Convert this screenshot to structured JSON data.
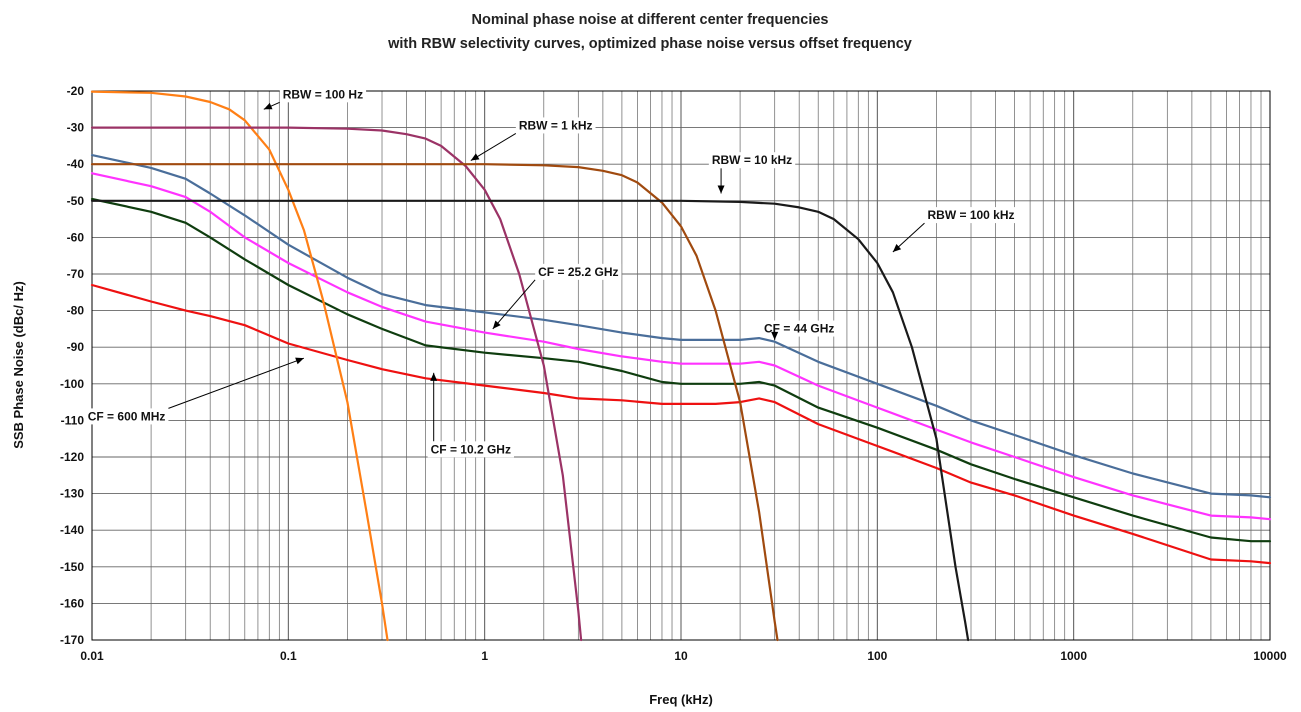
{
  "chart_data": {
    "type": "line",
    "title": "Nominal phase noise at different center frequencies",
    "subtitle": "with RBW selectivity curves, optimized phase noise versus offset frequency",
    "xlabel": "Freq (kHz)",
    "ylabel": "SSB Phase Noise (dBc/ Hz)",
    "x_scale": "log",
    "xlim": [
      0.01,
      10000
    ],
    "ylim": [
      -170,
      -20
    ],
    "x_ticks": [
      "0.01",
      "0.1",
      "1",
      "10",
      "100",
      "1000",
      "10000"
    ],
    "y_ticks": [
      "-20",
      "-30",
      "-40",
      "-50",
      "-60",
      "-70",
      "-80",
      "-90",
      "-100",
      "-110",
      "-120",
      "-130",
      "-140",
      "-150",
      "-160",
      "-170"
    ],
    "grid": true,
    "legend": "none",
    "series": [
      {
        "name": "CF = 44 GHz",
        "color": "#4a6e9a",
        "x": [
          0.01,
          0.02,
          0.03,
          0.04,
          0.06,
          0.1,
          0.2,
          0.3,
          0.5,
          1,
          2,
          3,
          5,
          8,
          10,
          15,
          20,
          25,
          30,
          50,
          100,
          200,
          300,
          500,
          1000,
          2000,
          5000,
          8000,
          10000
        ],
        "y": [
          -37.5,
          -41,
          -44,
          -48,
          -54,
          -62,
          -71,
          -75.5,
          -78.5,
          -80.5,
          -82.5,
          -84,
          -86,
          -87.5,
          -88,
          -88,
          -88,
          -87.5,
          -88.5,
          -94,
          -100,
          -106,
          -110,
          -114,
          -119.5,
          -124.5,
          -130,
          -130.5,
          -131
        ]
      },
      {
        "name": "CF = 25.2 GHz",
        "color": "#ff33ff",
        "x": [
          0.01,
          0.02,
          0.03,
          0.04,
          0.06,
          0.1,
          0.2,
          0.3,
          0.5,
          1,
          2,
          3,
          5,
          8,
          10,
          15,
          20,
          25,
          30,
          50,
          100,
          200,
          300,
          500,
          1000,
          2000,
          5000,
          8000,
          10000
        ],
        "y": [
          -42.5,
          -46,
          -49,
          -53,
          -60,
          -67,
          -75,
          -79,
          -83,
          -86,
          -88.5,
          -90.5,
          -92.5,
          -94,
          -94.5,
          -94.5,
          -94.5,
          -94,
          -95,
          -100.5,
          -106.5,
          -112.5,
          -116,
          -120,
          -125.5,
          -130.5,
          -136,
          -136.5,
          -137
        ]
      },
      {
        "name": "CF = 10.2 GHz",
        "color": "#0f3d0f",
        "x": [
          0.01,
          0.02,
          0.03,
          0.04,
          0.06,
          0.1,
          0.2,
          0.3,
          0.5,
          1,
          2,
          3,
          5,
          8,
          10,
          15,
          20,
          25,
          30,
          50,
          100,
          200,
          300,
          500,
          1000,
          2000,
          5000,
          8000,
          10000
        ],
        "y": [
          -49.5,
          -53,
          -56,
          -60,
          -66,
          -73,
          -81,
          -85,
          -89.5,
          -91.5,
          -93,
          -94,
          -96.5,
          -99.5,
          -100,
          -100,
          -100,
          -99.5,
          -100.5,
          -106.5,
          -112,
          -118,
          -122,
          -126,
          -131,
          -136,
          -142,
          -143,
          -143
        ]
      },
      {
        "name": "CF = 600 MHz",
        "color": "#ee1111",
        "x": [
          0.01,
          0.02,
          0.03,
          0.04,
          0.06,
          0.1,
          0.2,
          0.3,
          0.5,
          1,
          2,
          3,
          5,
          8,
          10,
          15,
          20,
          25,
          30,
          50,
          100,
          200,
          300,
          500,
          1000,
          2000,
          5000,
          8000,
          10000
        ],
        "y": [
          -73,
          -77.5,
          -80,
          -81.5,
          -84,
          -89,
          -93.5,
          -96,
          -98.5,
          -100.5,
          -102.5,
          -104,
          -104.5,
          -105.5,
          -105.5,
          -105.5,
          -105,
          -104,
          -105,
          -111,
          -117,
          -123,
          -127,
          -130.5,
          -136,
          -141,
          -148,
          -148.5,
          -149
        ]
      },
      {
        "name": "RBW = 100 Hz",
        "color": "#ff7f15",
        "x": [
          0.01,
          0.02,
          0.03,
          0.04,
          0.05,
          0.06,
          0.08,
          0.1,
          0.12,
          0.15,
          0.2,
          0.25,
          0.3,
          0.32
        ],
        "y": [
          -20.2,
          -20.5,
          -21.5,
          -23,
          -25,
          -28,
          -36,
          -47,
          -58,
          -77,
          -105,
          -135,
          -160,
          -170
        ]
      },
      {
        "name": "RBW = 1 kHz",
        "color": "#9b3366",
        "x": [
          0.01,
          0.1,
          0.2,
          0.3,
          0.4,
          0.5,
          0.6,
          0.8,
          1,
          1.2,
          1.5,
          2,
          2.5,
          3,
          3.1
        ],
        "y": [
          -30,
          -30,
          -30.3,
          -30.8,
          -31.8,
          -33,
          -35,
          -40.5,
          -47,
          -55,
          -70,
          -95,
          -125,
          -162,
          -170
        ]
      },
      {
        "name": "RBW = 10 kHz",
        "color": "#a04a0f",
        "x": [
          0.01,
          1,
          2,
          3,
          4,
          5,
          6,
          8,
          10,
          12,
          15,
          20,
          25,
          30,
          31
        ],
        "y": [
          -40,
          -40,
          -40.3,
          -40.8,
          -41.8,
          -43,
          -45,
          -50.5,
          -57,
          -65,
          -80,
          -105,
          -135,
          -165,
          -170
        ]
      },
      {
        "name": "RBW = 100 kHz",
        "color": "#1a1a1a",
        "x": [
          0.01,
          10,
          20,
          30,
          40,
          50,
          60,
          80,
          100,
          120,
          150,
          200,
          250,
          280,
          290
        ],
        "y": [
          -50,
          -50,
          -50.3,
          -50.8,
          -51.8,
          -53,
          -55,
          -60.5,
          -67,
          -75,
          -90,
          -115,
          -150,
          -165,
          -170
        ]
      }
    ],
    "annotations": [
      {
        "text": "RBW = 100 Hz",
        "x": 0.15,
        "y": -22,
        "x_target": 0.075,
        "y_target": -25
      },
      {
        "text": "RBW = 1 kHz",
        "x": 2.3,
        "y": -30.5,
        "x_target": 0.85,
        "y_target": -39
      },
      {
        "text": "RBW = 10 kHz",
        "x": 23,
        "y": -40,
        "x_target": 16,
        "y_target": -48
      },
      {
        "text": "RBW = 100 kHz",
        "x": 300,
        "y": -55,
        "x_target": 120,
        "y_target": -64
      },
      {
        "text": "CF = 25.2 GHz",
        "x": 3,
        "y": -70.5,
        "x_target": 1.1,
        "y_target": -85
      },
      {
        "text": "CF = 44 GHz",
        "x": 40,
        "y": -86,
        "x_target": 30,
        "y_target": -88
      },
      {
        "text": "CF = 600 MHz",
        "x": 0.015,
        "y": -110,
        "x_target": 0.12,
        "y_target": -93
      },
      {
        "text": "CF = 10.2 GHz",
        "x": 0.85,
        "y": -119,
        "x_target": 0.55,
        "y_target": -97
      }
    ]
  }
}
